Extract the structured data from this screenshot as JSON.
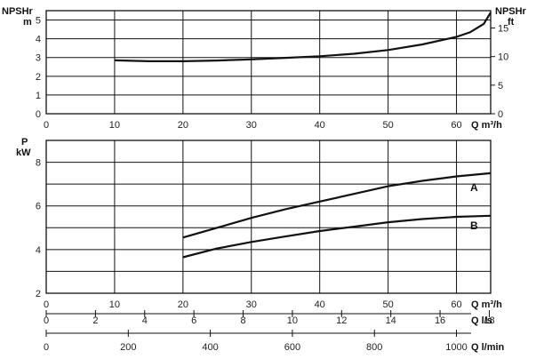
{
  "chart_data": [
    {
      "id": "npsh",
      "type": "line",
      "y_left_label": [
        "NPSHr",
        "m"
      ],
      "y_right_label": [
        "NPSHr",
        "ft"
      ],
      "x_label": "Q m³/h",
      "xlim": [
        0,
        65
      ],
      "ylim_left": [
        0,
        5.5
      ],
      "ylim_right_ft": [
        0,
        18.04
      ],
      "x_ticks": [
        0,
        10,
        20,
        30,
        40,
        50,
        60
      ],
      "y_ticks_left": [
        0,
        1,
        2,
        3,
        4,
        5
      ],
      "y_ticks_right": [
        0,
        5,
        10,
        15
      ],
      "grid": true,
      "series": [
        {
          "x": [
            10,
            15,
            20,
            25,
            30,
            35,
            40,
            45,
            50,
            55,
            60,
            62,
            64,
            65
          ],
          "y": [
            2.85,
            2.8,
            2.8,
            2.84,
            2.9,
            2.98,
            3.07,
            3.2,
            3.4,
            3.7,
            4.1,
            4.35,
            4.8,
            5.4
          ]
        }
      ]
    },
    {
      "id": "power",
      "type": "line",
      "y_label": [
        "P",
        "kW"
      ],
      "x_label": "Q m³/h",
      "xlim": [
        0,
        65
      ],
      "ylim": [
        2,
        9
      ],
      "x_ticks": [
        0,
        10,
        20,
        30,
        40,
        50,
        60
      ],
      "y_ticks": [
        2,
        4,
        6,
        8
      ],
      "grid": true,
      "series": [
        {
          "name": "A",
          "x": [
            20,
            25,
            30,
            35,
            40,
            45,
            50,
            55,
            60,
            65
          ],
          "y": [
            4.55,
            5.0,
            5.45,
            5.85,
            6.2,
            6.55,
            6.9,
            7.15,
            7.35,
            7.5
          ]
        },
        {
          "name": "B",
          "x": [
            20,
            25,
            30,
            35,
            40,
            45,
            50,
            55,
            60,
            65
          ],
          "y": [
            3.65,
            4.05,
            4.35,
            4.6,
            4.85,
            5.05,
            5.25,
            5.4,
            5.5,
            5.55
          ]
        }
      ]
    }
  ],
  "secondary_axes": [
    {
      "label": "Q l/s",
      "ticks": [
        0,
        2,
        4,
        6,
        8,
        10,
        12,
        14,
        16,
        18
      ],
      "per_m3h": 0.27778
    },
    {
      "label": "Q l/min",
      "ticks": [
        0,
        200,
        400,
        600,
        800,
        1000
      ],
      "per_m3h": 16.6667
    }
  ]
}
